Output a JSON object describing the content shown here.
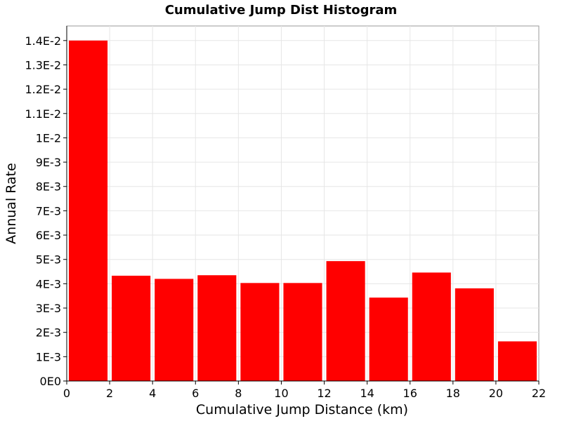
{
  "chart_data": {
    "type": "bar",
    "title": "Cumulative Jump Dist Histogram",
    "xlabel": "Cumulative Jump Distance (km)",
    "ylabel": "Annual Rate",
    "xlim": [
      0,
      22
    ],
    "ylim": [
      0,
      0.0146
    ],
    "grid": true,
    "bar_color": "#ff0000",
    "x_ticks": [
      0,
      2,
      4,
      6,
      8,
      10,
      12,
      14,
      16,
      18,
      20,
      22
    ],
    "x_tick_labels": [
      "0",
      "2",
      "4",
      "6",
      "8",
      "10",
      "12",
      "14",
      "16",
      "18",
      "20",
      "22"
    ],
    "y_ticks": [
      0,
      0.001,
      0.002,
      0.003,
      0.004,
      0.005,
      0.006,
      0.007,
      0.008,
      0.009,
      0.01,
      0.011,
      0.012,
      0.013,
      0.014
    ],
    "y_tick_labels": [
      "0E0",
      "1E-3",
      "2E-3",
      "3E-3",
      "4E-3",
      "5E-3",
      "6E-3",
      "7E-3",
      "8E-3",
      "9E-3",
      "1E-2",
      "1.1E-2",
      "1.2E-2",
      "1.3E-2",
      "1.4E-2"
    ],
    "bars": [
      {
        "x_start": 0,
        "x_end": 2,
        "value": 0.014
      },
      {
        "x_start": 2,
        "x_end": 4,
        "value": 0.00433
      },
      {
        "x_start": 4,
        "x_end": 6,
        "value": 0.0042
      },
      {
        "x_start": 6,
        "x_end": 8,
        "value": 0.00435
      },
      {
        "x_start": 8,
        "x_end": 10,
        "value": 0.00403
      },
      {
        "x_start": 10,
        "x_end": 12,
        "value": 0.00403
      },
      {
        "x_start": 12,
        "x_end": 14,
        "value": 0.00493
      },
      {
        "x_start": 14,
        "x_end": 16,
        "value": 0.00343
      },
      {
        "x_start": 16,
        "x_end": 18,
        "value": 0.00446
      },
      {
        "x_start": 18,
        "x_end": 20,
        "value": 0.00381
      },
      {
        "x_start": 20,
        "x_end": 22,
        "value": 0.00163
      }
    ]
  }
}
